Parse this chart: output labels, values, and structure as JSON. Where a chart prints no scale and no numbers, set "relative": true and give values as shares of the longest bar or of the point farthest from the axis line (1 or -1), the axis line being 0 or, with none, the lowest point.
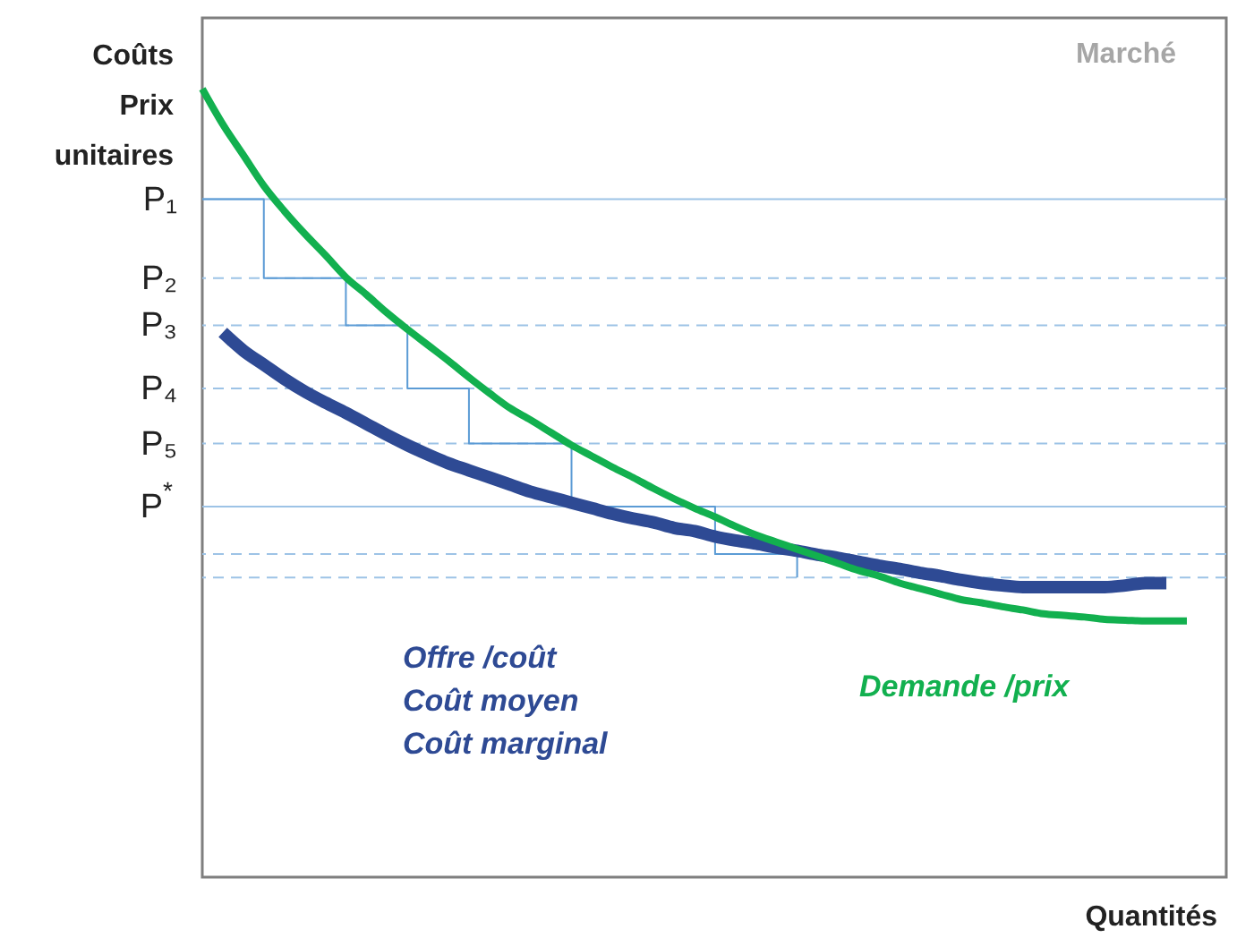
{
  "chart_data": {
    "type": "line",
    "relative": true,
    "title": "Marché",
    "xlabel": "Quantités",
    "ylabel": "Coûts\nPrix\nunitaires",
    "categories": [
      null,
      null,
      null,
      null,
      null,
      null,
      null,
      null,
      null,
      null,
      null,
      null,
      null,
      null,
      null,
      null,
      null,
      null,
      null,
      null,
      null,
      null,
      null,
      null,
      null,
      null,
      null,
      null,
      null,
      null,
      null,
      null,
      null,
      null,
      null,
      null,
      null,
      null,
      null,
      null,
      null,
      null,
      null,
      null,
      null,
      null,
      null,
      null,
      null
    ],
    "series": [
      {
        "name": "Offre /coût\nCoût moyen\nCoût marginal",
        "color": "#2e4a94",
        "values": [
          null,
          0.691,
          0.668,
          0.65,
          0.632,
          0.616,
          0.602,
          0.589,
          0.575,
          0.561,
          0.548,
          0.536,
          0.525,
          0.516,
          0.507,
          0.498,
          0.489,
          0.482,
          0.475,
          0.468,
          0.461,
          0.455,
          0.45,
          0.443,
          0.439,
          0.432,
          0.427,
          0.423,
          0.418,
          0.414,
          0.409,
          0.405,
          0.4,
          0.395,
          0.391,
          0.386,
          0.382,
          0.377,
          0.373,
          0.37,
          0.368,
          0.368,
          0.368,
          0.368,
          0.368,
          0.37,
          0.373,
          0.373,
          null
        ]
      },
      {
        "name": "Demande /prix",
        "color": "#12b04f",
        "values": [
          1.0,
          0.955,
          0.916,
          0.877,
          0.845,
          0.816,
          0.789,
          0.761,
          0.739,
          0.716,
          0.695,
          0.675,
          0.655,
          0.634,
          0.614,
          0.595,
          0.58,
          0.564,
          0.548,
          0.534,
          0.52,
          0.507,
          0.493,
          0.48,
          0.468,
          0.457,
          0.445,
          0.434,
          0.425,
          0.416,
          0.407,
          0.398,
          0.389,
          0.382,
          0.373,
          0.366,
          0.359,
          0.352,
          0.348,
          0.343,
          0.339,
          0.334,
          0.332,
          0.33,
          0.327,
          0.326,
          0.325,
          0.325,
          0.325
        ]
      },
      {
        "type": "step",
        "color": "#5b9bd5",
        "values": [
          0.86,
          0.86,
          0.86,
          0.76,
          0.76,
          0.76,
          0.76,
          0.7,
          0.7,
          0.7,
          0.62,
          0.62,
          0.62,
          0.55,
          0.55,
          0.55,
          0.55,
          0.55,
          0.47,
          0.47,
          0.47,
          0.47,
          0.47,
          0.47,
          0.47,
          0.41,
          0.41,
          0.41,
          0.41,
          0.38,
          null,
          null,
          null,
          null,
          null,
          null,
          null,
          null,
          null,
          null,
          null,
          null,
          null,
          null,
          null,
          null,
          null,
          null,
          null
        ]
      }
    ],
    "ref_lines": [
      {
        "axis": "y",
        "value": 0.86,
        "label": "P₁",
        "color": "#9dc3e6",
        "line_style": "solid"
      },
      {
        "axis": "y",
        "value": 0.76,
        "label": "P₂",
        "color": "#9dc3e6",
        "line_style": "dashed"
      },
      {
        "axis": "y",
        "value": 0.7,
        "label": "P₃",
        "color": "#9dc3e6",
        "line_style": "dashed"
      },
      {
        "axis": "y",
        "value": 0.62,
        "label": "P₄",
        "color": "#9dc3e6",
        "line_style": "dashed"
      },
      {
        "axis": "y",
        "value": 0.55,
        "label": "P₅",
        "color": "#9dc3e6",
        "line_style": "dashed"
      },
      {
        "axis": "y",
        "value": 0.47,
        "label": "P$^{*}$",
        "color": "#9dc3e6",
        "line_style": "solid"
      },
      {
        "axis": "y",
        "value": 0.41,
        "label": null,
        "color": "#9dc3e6",
        "line_style": "dashed"
      },
      {
        "axis": "y",
        "value": 0.38,
        "label": null,
        "color": "#9dc3e6",
        "line_style": "dashed"
      }
    ]
  }
}
